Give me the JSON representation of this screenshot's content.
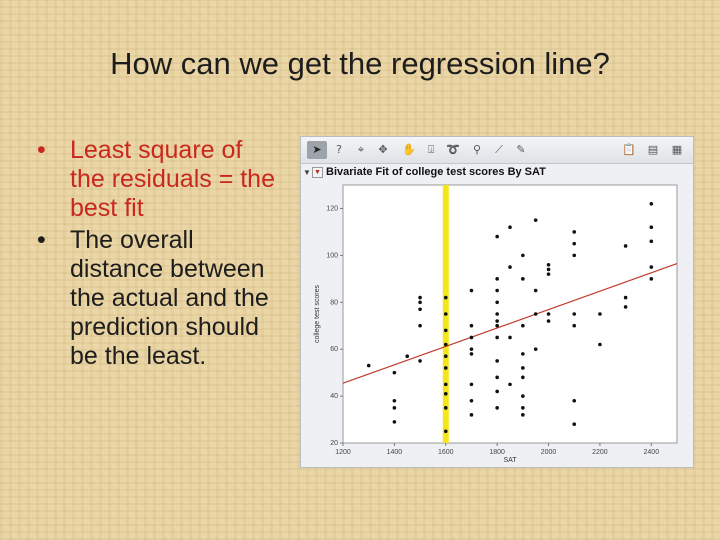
{
  "slide": {
    "title": "How can we get the regression line?",
    "bullets": [
      {
        "marker": "•",
        "text": "Least square of the residuals = the best fit",
        "color": "#c8281e"
      },
      {
        "marker": "•",
        "text": "The overall distance between the actual and the prediction should be the least.",
        "color": "#1d1d1d"
      }
    ]
  },
  "jmp": {
    "toolbar_icons": [
      "arrow-icon",
      "help-icon",
      "crosshair-icon",
      "grabber-icon",
      "lasso-hand-icon",
      "brush-icon",
      "lasso-icon",
      "zoom-icon",
      "line-icon",
      "annotate-icon"
    ],
    "report_title": "Bivariate Fit of college test scores By SAT",
    "disclosure": "▼",
    "menu_marker": "▼",
    "highlight_color": "#f5e61a",
    "fit_line_color": "#c0392b"
  },
  "chart_data": {
    "type": "scatter",
    "xlabel": "SAT",
    "ylabel": "college test scores",
    "xlim": [
      1200,
      2500
    ],
    "ylim": [
      20,
      130
    ],
    "xticks": [
      1200,
      1400,
      1600,
      1800,
      2000,
      2200,
      2400
    ],
    "yticks": [
      20,
      40,
      60,
      80,
      100,
      120
    ],
    "grid": false,
    "highlight_x": 1600,
    "fit_line": {
      "x": [
        1200,
        2500
      ],
      "y": [
        45.5,
        96.5
      ]
    },
    "points": [
      [
        1300,
        53
      ],
      [
        1400,
        38
      ],
      [
        1400,
        50
      ],
      [
        1400,
        29
      ],
      [
        1400,
        35
      ],
      [
        1450,
        57
      ],
      [
        1500,
        77
      ],
      [
        1500,
        70
      ],
      [
        1500,
        82
      ],
      [
        1500,
        55
      ],
      [
        1500,
        80
      ],
      [
        1600,
        82
      ],
      [
        1600,
        75
      ],
      [
        1600,
        68
      ],
      [
        1600,
        62
      ],
      [
        1600,
        57
      ],
      [
        1600,
        52
      ],
      [
        1600,
        45
      ],
      [
        1600,
        41
      ],
      [
        1600,
        35
      ],
      [
        1600,
        25
      ],
      [
        1700,
        85
      ],
      [
        1700,
        70
      ],
      [
        1700,
        65
      ],
      [
        1700,
        60
      ],
      [
        1700,
        58
      ],
      [
        1700,
        45
      ],
      [
        1700,
        38
      ],
      [
        1700,
        32
      ],
      [
        1800,
        108
      ],
      [
        1800,
        90
      ],
      [
        1800,
        85
      ],
      [
        1800,
        80
      ],
      [
        1800,
        75
      ],
      [
        1800,
        72
      ],
      [
        1800,
        70
      ],
      [
        1800,
        65
      ],
      [
        1800,
        55
      ],
      [
        1800,
        48
      ],
      [
        1800,
        42
      ],
      [
        1800,
        35
      ],
      [
        1850,
        112
      ],
      [
        1850,
        95
      ],
      [
        1850,
        65
      ],
      [
        1850,
        45
      ],
      [
        1900,
        100
      ],
      [
        1900,
        90
      ],
      [
        1900,
        70
      ],
      [
        1900,
        58
      ],
      [
        1900,
        52
      ],
      [
        1900,
        48
      ],
      [
        1900,
        40
      ],
      [
        1900,
        35
      ],
      [
        1900,
        32
      ],
      [
        1950,
        115
      ],
      [
        1950,
        85
      ],
      [
        1950,
        75
      ],
      [
        1950,
        60
      ],
      [
        2000,
        72
      ],
      [
        2000,
        75
      ],
      [
        2000,
        92
      ],
      [
        2000,
        94
      ],
      [
        2000,
        96
      ],
      [
        2100,
        105
      ],
      [
        2100,
        110
      ],
      [
        2100,
        100
      ],
      [
        2100,
        75
      ],
      [
        2100,
        70
      ],
      [
        2100,
        38
      ],
      [
        2100,
        28
      ],
      [
        2200,
        75
      ],
      [
        2200,
        62
      ],
      [
        2300,
        104
      ],
      [
        2300,
        82
      ],
      [
        2300,
        78
      ],
      [
        2400,
        122
      ],
      [
        2400,
        112
      ],
      [
        2400,
        106
      ],
      [
        2400,
        95
      ],
      [
        2400,
        90
      ]
    ]
  }
}
